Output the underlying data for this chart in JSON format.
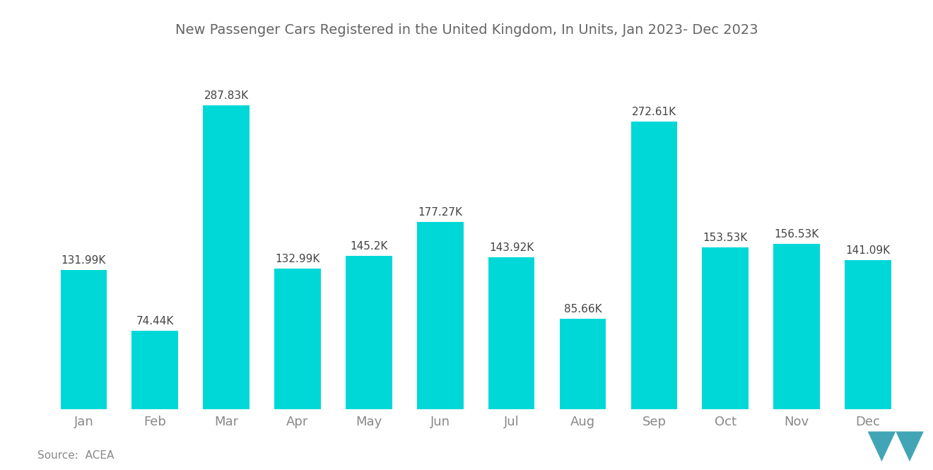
{
  "title": "New Passenger Cars Registered in the United Kingdom, In Units, Jan 2023- Dec 2023",
  "source_text": "Source:  ACEA",
  "months": [
    "Jan",
    "Feb",
    "Mar",
    "Apr",
    "May",
    "Jun",
    "Jul",
    "Aug",
    "Sep",
    "Oct",
    "Nov",
    "Dec"
  ],
  "values": [
    131990,
    74440,
    287830,
    132990,
    145200,
    177270,
    143920,
    85660,
    272610,
    153530,
    156530,
    141090
  ],
  "labels": [
    "131.99K",
    "74.44K",
    "287.83K",
    "132.99K",
    "145.2K",
    "177.27K",
    "143.92K",
    "85.66K",
    "272.61K",
    "153.53K",
    "156.53K",
    "141.09K"
  ],
  "bar_color": "#00D8D8",
  "background_color": "#ffffff",
  "title_color": "#666666",
  "label_color": "#444444",
  "axis_color": "#888888",
  "title_fontsize": 14,
  "label_fontsize": 11,
  "tick_fontsize": 13,
  "source_fontsize": 11,
  "ylim": [
    0,
    330000
  ],
  "bar_width": 0.65
}
